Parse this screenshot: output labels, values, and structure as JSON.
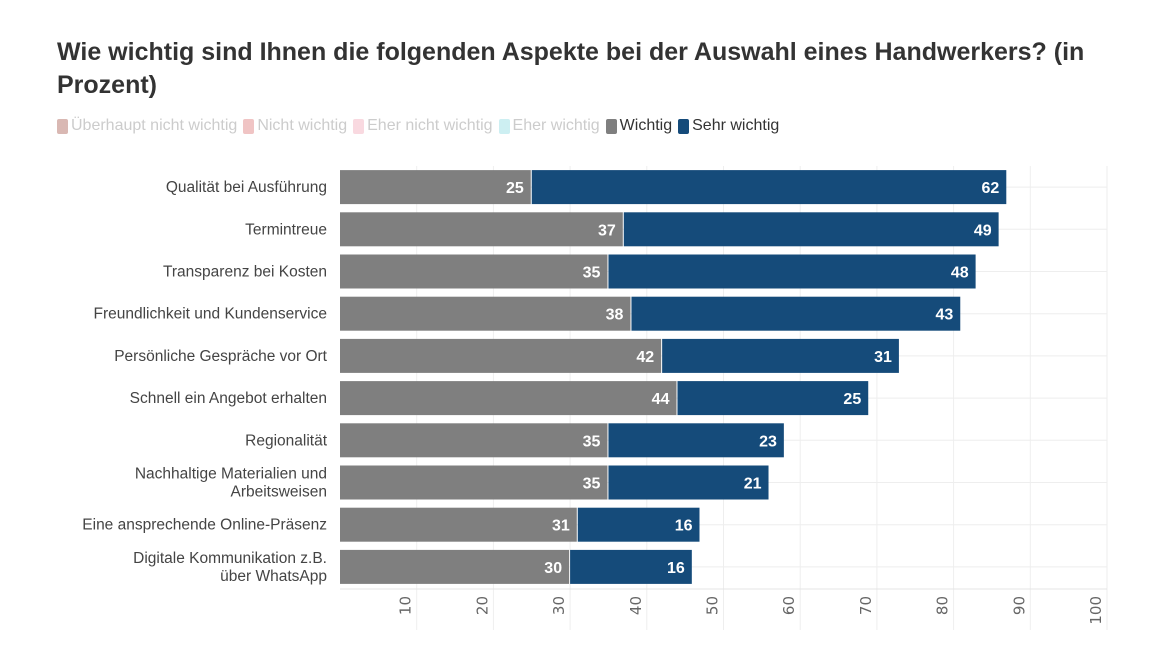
{
  "title": "Wie wichtig sind Ihnen die folgenden Aspekte bei der Auswahl eines Handwerkers? (in Prozent)",
  "legend": [
    {
      "label": "Überhaupt nicht wichtig",
      "color": "#d9b8b3",
      "active": false
    },
    {
      "label": "Nicht wichtig",
      "color": "#f0c4c4",
      "active": false
    },
    {
      "label": "Eher nicht wichtig",
      "color": "#f9d9e0",
      "active": false
    },
    {
      "label": "Eher wichtig",
      "color": "#cdeff2",
      "active": false
    },
    {
      "label": "Wichtig",
      "color": "#7f7f7f",
      "active": true
    },
    {
      "label": "Sehr wichtig",
      "color": "#154b7a",
      "active": true
    }
  ],
  "chart_data": {
    "type": "bar",
    "orientation": "horizontal",
    "stacked": true,
    "title": "Wie wichtig sind Ihnen die folgenden Aspekte bei der Auswahl eines Handwerkers? (in Prozent)",
    "categories": [
      "Qualität bei Ausführung",
      "Termintreue",
      "Transparenz bei Kosten",
      "Freundlichkeit und Kundenservice",
      "Persönliche Gespräche vor Ort",
      "Schnell ein Angebot erhalten",
      "Regionalität",
      "Nachhaltige Materialien und Arbeitsweisen",
      "Eine ansprechende Online-Präsenz",
      "Digitale Kommunikation z.B. über WhatsApp"
    ],
    "series": [
      {
        "name": "Wichtig",
        "color": "#7f7f7f",
        "values": [
          25,
          37,
          35,
          38,
          42,
          44,
          35,
          35,
          31,
          30
        ]
      },
      {
        "name": "Sehr wichtig",
        "color": "#154b7a",
        "values": [
          62,
          49,
          48,
          43,
          31,
          25,
          23,
          21,
          16,
          16
        ]
      }
    ],
    "xlim": [
      0,
      100
    ],
    "xticks": [
      10,
      20,
      30,
      40,
      50,
      60,
      70,
      80,
      90,
      100
    ],
    "grid": true,
    "legend_position": "top-left"
  }
}
